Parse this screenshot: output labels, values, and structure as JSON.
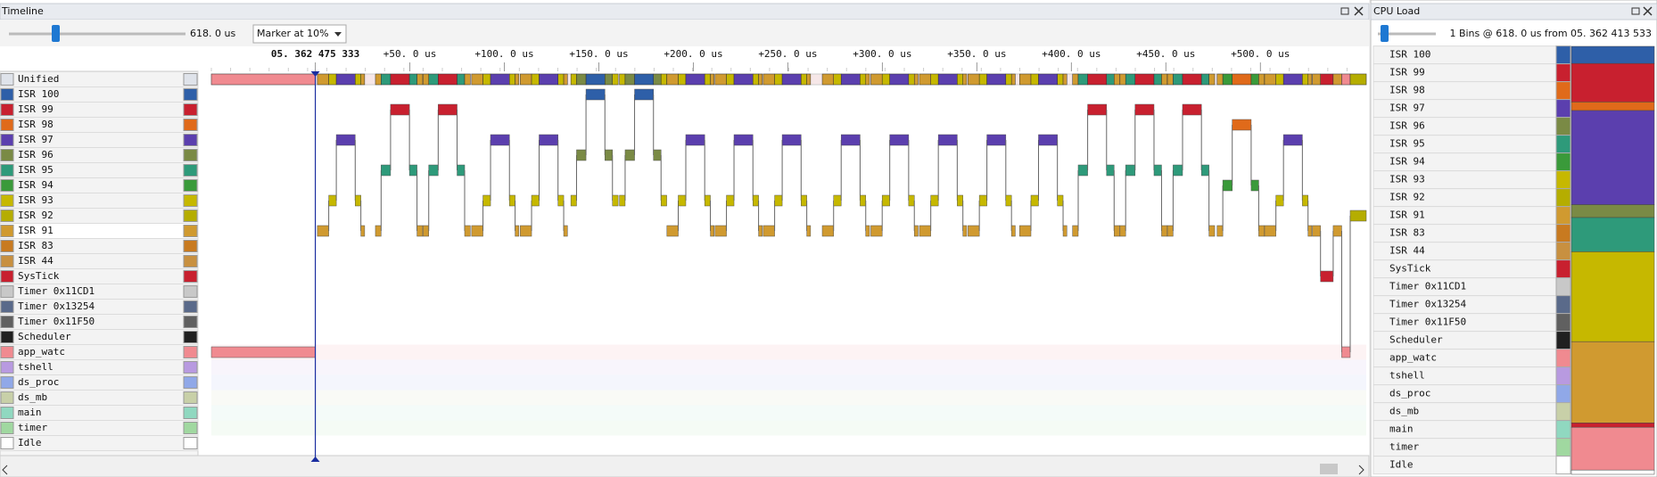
{
  "timeline": {
    "title": "Timeline",
    "zoom_label": "618. 0 us",
    "marker_label": "Marker at 10%",
    "xlim": [
      -55,
      556
    ],
    "xticks": [
      {
        "value": 0,
        "label": "05. 362 475 333"
      },
      {
        "value": 50,
        "label": "+50. 0 us"
      },
      {
        "value": 100,
        "label": "+100. 0 us"
      },
      {
        "value": 150,
        "label": "+150. 0 us"
      },
      {
        "value": 200,
        "label": "+200. 0 us"
      },
      {
        "value": 250,
        "label": "+250. 0 us"
      },
      {
        "value": 300,
        "label": "+300. 0 us"
      },
      {
        "value": 350,
        "label": "+350. 0 us"
      },
      {
        "value": 400,
        "label": "+400. 0 us"
      },
      {
        "value": 450,
        "label": "+450. 0 us"
      },
      {
        "value": 500,
        "label": "+500. 0 us"
      }
    ],
    "rows": [
      {
        "name": "Unified",
        "color": "#dfe3ea"
      },
      {
        "name": "ISR 100",
        "color": "#2e5fa8"
      },
      {
        "name": "ISR 99",
        "color": "#c8202f"
      },
      {
        "name": "ISR 98",
        "color": "#e06a1a"
      },
      {
        "name": "ISR 97",
        "color": "#5b3fae"
      },
      {
        "name": "ISR 96",
        "color": "#7a8a45"
      },
      {
        "name": "ISR 95",
        "color": "#2e9a7a"
      },
      {
        "name": "ISR 94",
        "color": "#3a9a3a"
      },
      {
        "name": "ISR 93",
        "color": "#c6b800"
      },
      {
        "name": "ISR 92",
        "color": "#b5ad00"
      },
      {
        "name": "ISR 91",
        "color": "#d09a30"
      },
      {
        "name": "ISR 83",
        "color": "#c87a20"
      },
      {
        "name": "ISR 44",
        "color": "#c89040"
      },
      {
        "name": "SysTick",
        "color": "#c8202f"
      },
      {
        "name": "Timer 0x11CD1",
        "color": "#c8c8c8"
      },
      {
        "name": "Timer 0x13254",
        "color": "#5a6a8a"
      },
      {
        "name": "Timer 0x11F50",
        "color": "#606060"
      },
      {
        "name": "Scheduler",
        "color": "#202020"
      },
      {
        "name": "app_watc",
        "color": "#f08a90"
      },
      {
        "name": "tshell",
        "color": "#b89ae0"
      },
      {
        "name": "ds_proc",
        "color": "#90a8e8"
      },
      {
        "name": "ds_mb",
        "color": "#c8d0a8"
      },
      {
        "name": "main",
        "color": "#90d8c0"
      },
      {
        "name": "timer",
        "color": "#a0d8a0"
      },
      {
        "name": "Idle",
        "color": "#ffffff"
      }
    ],
    "trace": [
      [
        -55,
        0,
        18
      ],
      [
        1.1,
        7.1,
        10
      ],
      [
        7.1,
        11.1,
        8
      ],
      [
        11.1,
        21.1,
        4
      ],
      [
        21.1,
        24.1,
        8
      ],
      [
        24.1,
        26.1,
        10
      ],
      [
        31.8,
        34.8,
        10
      ],
      [
        34.8,
        39.8,
        6
      ],
      [
        39.8,
        49.8,
        2
      ],
      [
        49.8,
        53.8,
        6
      ],
      [
        53.8,
        56.8,
        10
      ],
      [
        57,
        60,
        10
      ],
      [
        60,
        65,
        6
      ],
      [
        65,
        75,
        2
      ],
      [
        75,
        79,
        6
      ],
      [
        79,
        82,
        10
      ],
      [
        82.7,
        88.7,
        10
      ],
      [
        88.7,
        92.7,
        8
      ],
      [
        92.7,
        102.7,
        4
      ],
      [
        102.7,
        105.7,
        8
      ],
      [
        105.7,
        107.7,
        10
      ],
      [
        108.4,
        114.4,
        10
      ],
      [
        114.4,
        118.4,
        8
      ],
      [
        118.4,
        128.4,
        4
      ],
      [
        128.4,
        131.4,
        8
      ],
      [
        131.4,
        133.4,
        10
      ],
      [
        135.2,
        138.2,
        8
      ],
      [
        138.2,
        143.2,
        5
      ],
      [
        143.2,
        153.2,
        1
      ],
      [
        153.2,
        157.2,
        5
      ],
      [
        157.2,
        160.2,
        8
      ],
      [
        160.9,
        163.9,
        8
      ],
      [
        163.9,
        168.9,
        5
      ],
      [
        168.9,
        178.9,
        1
      ],
      [
        178.9,
        182.9,
        5
      ],
      [
        182.9,
        185.9,
        8
      ],
      [
        186,
        192,
        10
      ],
      [
        192,
        196,
        8
      ],
      [
        196,
        206,
        4
      ],
      [
        206,
        209,
        8
      ],
      [
        209,
        211,
        10
      ],
      [
        211.5,
        217.5,
        10
      ],
      [
        217.5,
        221.5,
        8
      ],
      [
        221.5,
        231.5,
        4
      ],
      [
        231.5,
        234.5,
        8
      ],
      [
        234.5,
        236.5,
        10
      ],
      [
        237,
        243,
        10
      ],
      [
        243,
        247,
        8
      ],
      [
        247,
        257,
        4
      ],
      [
        257,
        260,
        8
      ],
      [
        260,
        262,
        10
      ],
      [
        268.2,
        274.2,
        10
      ],
      [
        274.2,
        278.2,
        8
      ],
      [
        278.2,
        288.2,
        4
      ],
      [
        288.2,
        291.2,
        8
      ],
      [
        291.2,
        293.2,
        10
      ],
      [
        293.9,
        299.9,
        10
      ],
      [
        299.9,
        303.9,
        8
      ],
      [
        303.9,
        313.9,
        4
      ],
      [
        313.9,
        316.9,
        8
      ],
      [
        316.9,
        318.9,
        10
      ],
      [
        319.6,
        325.6,
        10
      ],
      [
        325.6,
        329.6,
        8
      ],
      [
        329.6,
        339.6,
        4
      ],
      [
        339.6,
        342.6,
        8
      ],
      [
        342.6,
        344.6,
        10
      ],
      [
        345.3,
        351.3,
        10
      ],
      [
        351.3,
        355.3,
        8
      ],
      [
        355.3,
        365.3,
        4
      ],
      [
        365.3,
        368.3,
        8
      ],
      [
        368.3,
        370.3,
        10
      ],
      [
        372.6,
        378.6,
        10
      ],
      [
        378.6,
        382.6,
        8
      ],
      [
        382.6,
        392.6,
        4
      ],
      [
        392.6,
        395.6,
        8
      ],
      [
        395.6,
        397.6,
        10
      ],
      [
        400.6,
        403.6,
        10
      ],
      [
        403.6,
        408.6,
        6
      ],
      [
        408.6,
        418.6,
        2
      ],
      [
        418.6,
        422.6,
        6
      ],
      [
        422.6,
        425.6,
        10
      ],
      [
        425.7,
        428.7,
        10
      ],
      [
        428.7,
        433.7,
        6
      ],
      [
        433.7,
        443.7,
        2
      ],
      [
        443.7,
        447.7,
        6
      ],
      [
        447.7,
        450.7,
        10
      ],
      [
        450.8,
        453.8,
        10
      ],
      [
        453.8,
        458.8,
        6
      ],
      [
        458.8,
        468.8,
        2
      ],
      [
        468.8,
        472.8,
        6
      ],
      [
        472.8,
        475.8,
        10
      ],
      [
        477.1,
        480.1,
        10
      ],
      [
        480.1,
        485.1,
        7
      ],
      [
        485.1,
        495.1,
        3
      ],
      [
        495.1,
        499.1,
        7
      ],
      [
        499.1,
        502.1,
        10
      ],
      [
        502.2,
        508.2,
        10
      ],
      [
        508.2,
        512.2,
        8
      ],
      [
        512.2,
        522.2,
        4
      ],
      [
        522.2,
        525.2,
        8
      ],
      [
        525.2,
        527.2,
        10
      ],
      [
        527.5,
        531.8,
        10
      ],
      [
        531.8,
        538.5,
        13
      ],
      [
        538.5,
        543,
        10
      ],
      [
        543,
        547.5,
        18
      ],
      [
        547.5,
        556,
        9
      ]
    ]
  },
  "cpu_load": {
    "title": "CPU Load",
    "info": "1 Bins @ 618. 0 us from 05. 362 413 533",
    "ylim": [
      0,
      100
    ],
    "values": [
      4,
      9,
      2,
      22,
      3,
      8,
      0,
      21,
      0,
      19,
      0,
      0,
      1,
      0,
      0,
      0,
      0,
      10,
      0,
      0,
      0,
      0,
      0,
      1
    ]
  }
}
